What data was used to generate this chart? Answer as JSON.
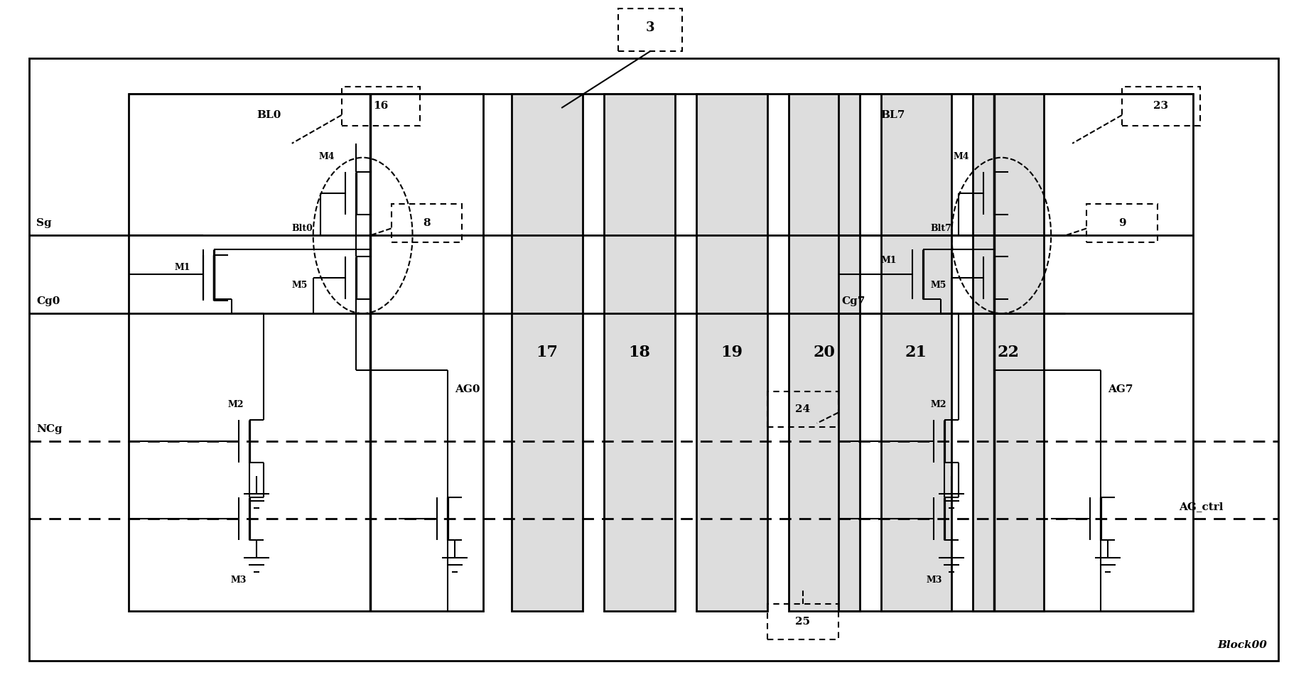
{
  "bg_color": "#ffffff",
  "fig_width": 18.45,
  "fig_height": 9.81,
  "labels": {
    "block00": "Block00",
    "label3": "3",
    "label16": "16",
    "label8": "8",
    "label23": "23",
    "label9": "9",
    "label24": "24",
    "label25": "25",
    "BL0": "BL0",
    "BL7": "BL7",
    "Sg": "Sg",
    "Cg0": "Cg0",
    "Cg7": "Cg7",
    "NCg": "NCg",
    "AG0": "AG0",
    "AG7": "AG7",
    "AG_ctrl": "AG_ctrl",
    "M1_left": "M1",
    "M2_left": "M2",
    "M3_left": "M3",
    "M4_left": "M4",
    "M5_left": "M5",
    "Bit0": "Blt0",
    "M1_right": "M1",
    "M2_right": "M2",
    "M3_right": "M3",
    "M4_right": "M4",
    "M5_right": "M5",
    "Bit7": "Blt7",
    "col17": "17",
    "col18": "18",
    "col19": "19",
    "col20": "20",
    "col21": "21",
    "col22": "22"
  }
}
